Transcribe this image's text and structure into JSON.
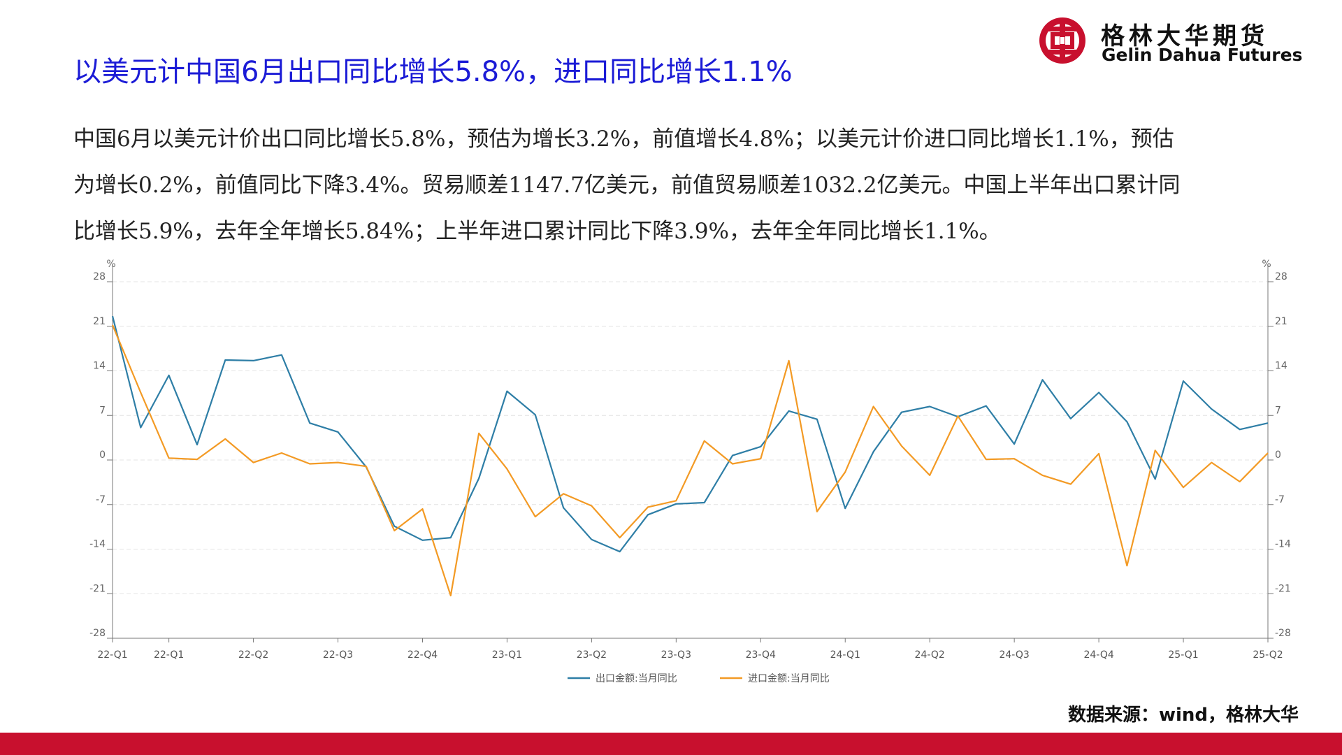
{
  "title": "以美元计中国6月出口同比增长5.8%，进口同比增长1.1%",
  "logo": {
    "cn": "格林大华期货",
    "en": "Gelin Dahua Futures",
    "icon": "gelin-dahua-logo-icon"
  },
  "body_lines": [
    "中国6月以美元计价出口同比增长5.8%，预估为增长3.2%，前值增长4.8%；以美元计价进口同比增长1.1%，预估",
    "为增长0.2%，前值同比下降3.4%。贸易顺差1147.7亿美元，前值贸易顺差1032.2亿美元。中国上半年出口累计同",
    "比增长5.9%，去年全年增长5.84%；上半年进口累计同比下降3.9%，去年全年同比增长1.1%。"
  ],
  "source": "数据来源：wind，格林大华",
  "colors": {
    "title": "#1b1bd6",
    "brand_red": "#c8102e",
    "export": "#2e7ea6",
    "import": "#f39a24"
  },
  "chart_data": {
    "type": "line",
    "unit_left": "%",
    "unit_right": "%",
    "ylim": [
      -28,
      28
    ],
    "yticks": [
      28,
      21,
      14,
      7,
      0,
      -7,
      -14,
      -21,
      -28
    ],
    "ytick_labels": [
      "28",
      "21",
      "14",
      "7",
      "0",
      "-7",
      "-14",
      "-21",
      "-28"
    ],
    "x_labels": [
      "22-Q1",
      "22-Q1",
      "22-Q2",
      "22-Q3",
      "22-Q4",
      "23-Q1",
      "23-Q2",
      "23-Q3",
      "23-Q4",
      "24-Q1",
      "24-Q2",
      "24-Q3",
      "24-Q4",
      "25-Q1",
      "25-Q2"
    ],
    "x_label_points": [
      0,
      2,
      5,
      8,
      11,
      14,
      17,
      20,
      23,
      26,
      29,
      32,
      35,
      38,
      41
    ],
    "grid": true,
    "legend_position": "bottom",
    "series": [
      {
        "name": "出口金额:当月同比",
        "values": [
          22.6,
          5.1,
          13.3,
          2.4,
          15.7,
          15.6,
          16.5,
          5.8,
          4.4,
          -1.1,
          -10.4,
          -12.6,
          -12.2,
          -2.9,
          10.8,
          7.1,
          -7.5,
          -12.5,
          -14.4,
          -8.6,
          -6.9,
          -6.7,
          0.7,
          2.1,
          7.7,
          6.4,
          -7.6,
          1.3,
          7.5,
          8.4,
          6.8,
          8.5,
          2.5,
          12.6,
          6.5,
          10.6,
          6.0,
          -3.0,
          12.4,
          8.0,
          4.8,
          5.8
        ]
      },
      {
        "name": "进口金额:当月同比",
        "values": [
          21.2,
          10.6,
          0.3,
          0.1,
          3.3,
          -0.4,
          1.1,
          -0.6,
          -0.4,
          -1.0,
          -11.1,
          -7.7,
          -21.3,
          4.2,
          -1.4,
          -8.9,
          -5.3,
          -7.2,
          -12.2,
          -7.4,
          -6.4,
          3.0,
          -0.6,
          0.2,
          15.6,
          -8.1,
          -1.9,
          8.4,
          2.2,
          -2.4,
          6.9,
          0.1,
          0.2,
          -2.4,
          -3.8,
          1.0,
          -16.6,
          1.5,
          -4.3,
          -0.4,
          -3.4,
          1.1
        ]
      }
    ]
  }
}
